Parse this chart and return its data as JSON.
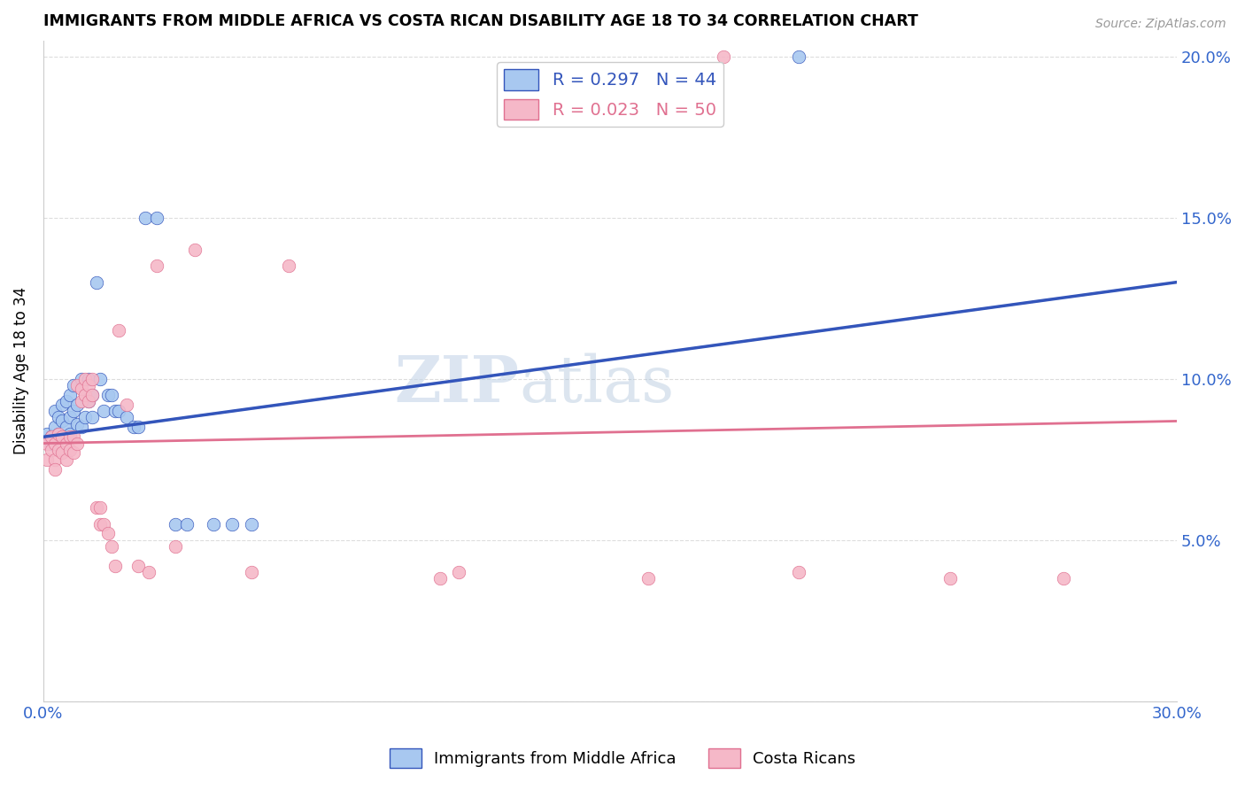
{
  "title": "IMMIGRANTS FROM MIDDLE AFRICA VS COSTA RICAN DISABILITY AGE 18 TO 34 CORRELATION CHART",
  "source": "Source: ZipAtlas.com",
  "ylabel": "Disability Age 18 to 34",
  "right_yticks": [
    "20.0%",
    "15.0%",
    "10.0%",
    "5.0%"
  ],
  "right_ytick_vals": [
    0.2,
    0.15,
    0.1,
    0.05
  ],
  "legend_blue": "R = 0.297   N = 44",
  "legend_pink": "R = 0.023   N = 50",
  "legend_label_blue": "Immigrants from Middle Africa",
  "legend_label_pink": "Costa Ricans",
  "blue_color": "#A8C8F0",
  "pink_color": "#F5B8C8",
  "blue_line_color": "#3355BB",
  "pink_line_color": "#E07090",
  "dashed_line_color": "#BBBBBB",
  "watermark_zip": "ZIP",
  "watermark_atlas": "atlas",
  "xlim": [
    0.0,
    0.3
  ],
  "ylim": [
    0.0,
    0.205
  ],
  "blue_points_x": [
    0.001,
    0.002,
    0.002,
    0.003,
    0.003,
    0.004,
    0.004,
    0.005,
    0.005,
    0.006,
    0.006,
    0.007,
    0.007,
    0.007,
    0.008,
    0.008,
    0.009,
    0.009,
    0.01,
    0.01,
    0.011,
    0.011,
    0.012,
    0.012,
    0.013,
    0.013,
    0.014,
    0.015,
    0.016,
    0.017,
    0.018,
    0.019,
    0.02,
    0.022,
    0.024,
    0.025,
    0.027,
    0.03,
    0.035,
    0.038,
    0.045,
    0.05,
    0.055,
    0.2
  ],
  "blue_points_y": [
    0.083,
    0.082,
    0.08,
    0.09,
    0.085,
    0.088,
    0.083,
    0.092,
    0.087,
    0.093,
    0.085,
    0.095,
    0.088,
    0.083,
    0.098,
    0.09,
    0.086,
    0.092,
    0.1,
    0.085,
    0.095,
    0.088,
    0.1,
    0.093,
    0.095,
    0.088,
    0.13,
    0.1,
    0.09,
    0.095,
    0.095,
    0.09,
    0.09,
    0.088,
    0.085,
    0.085,
    0.15,
    0.15,
    0.055,
    0.055,
    0.055,
    0.055,
    0.055,
    0.2
  ],
  "pink_points_x": [
    0.001,
    0.001,
    0.002,
    0.002,
    0.003,
    0.003,
    0.003,
    0.004,
    0.004,
    0.005,
    0.005,
    0.006,
    0.006,
    0.007,
    0.007,
    0.008,
    0.008,
    0.009,
    0.009,
    0.01,
    0.01,
    0.011,
    0.011,
    0.012,
    0.012,
    0.013,
    0.013,
    0.014,
    0.015,
    0.015,
    0.016,
    0.017,
    0.018,
    0.019,
    0.02,
    0.022,
    0.025,
    0.028,
    0.03,
    0.035,
    0.04,
    0.055,
    0.065,
    0.105,
    0.11,
    0.16,
    0.18,
    0.2,
    0.24,
    0.27
  ],
  "pink_points_y": [
    0.08,
    0.075,
    0.082,
    0.078,
    0.08,
    0.075,
    0.072,
    0.083,
    0.078,
    0.082,
    0.077,
    0.08,
    0.075,
    0.082,
    0.078,
    0.082,
    0.077,
    0.08,
    0.098,
    0.097,
    0.093,
    0.1,
    0.095,
    0.098,
    0.093,
    0.1,
    0.095,
    0.06,
    0.06,
    0.055,
    0.055,
    0.052,
    0.048,
    0.042,
    0.115,
    0.092,
    0.042,
    0.04,
    0.135,
    0.048,
    0.14,
    0.04,
    0.135,
    0.038,
    0.04,
    0.038,
    0.2,
    0.04,
    0.038,
    0.038
  ],
  "background_color": "#FFFFFF",
  "grid_color": "#DDDDDD"
}
